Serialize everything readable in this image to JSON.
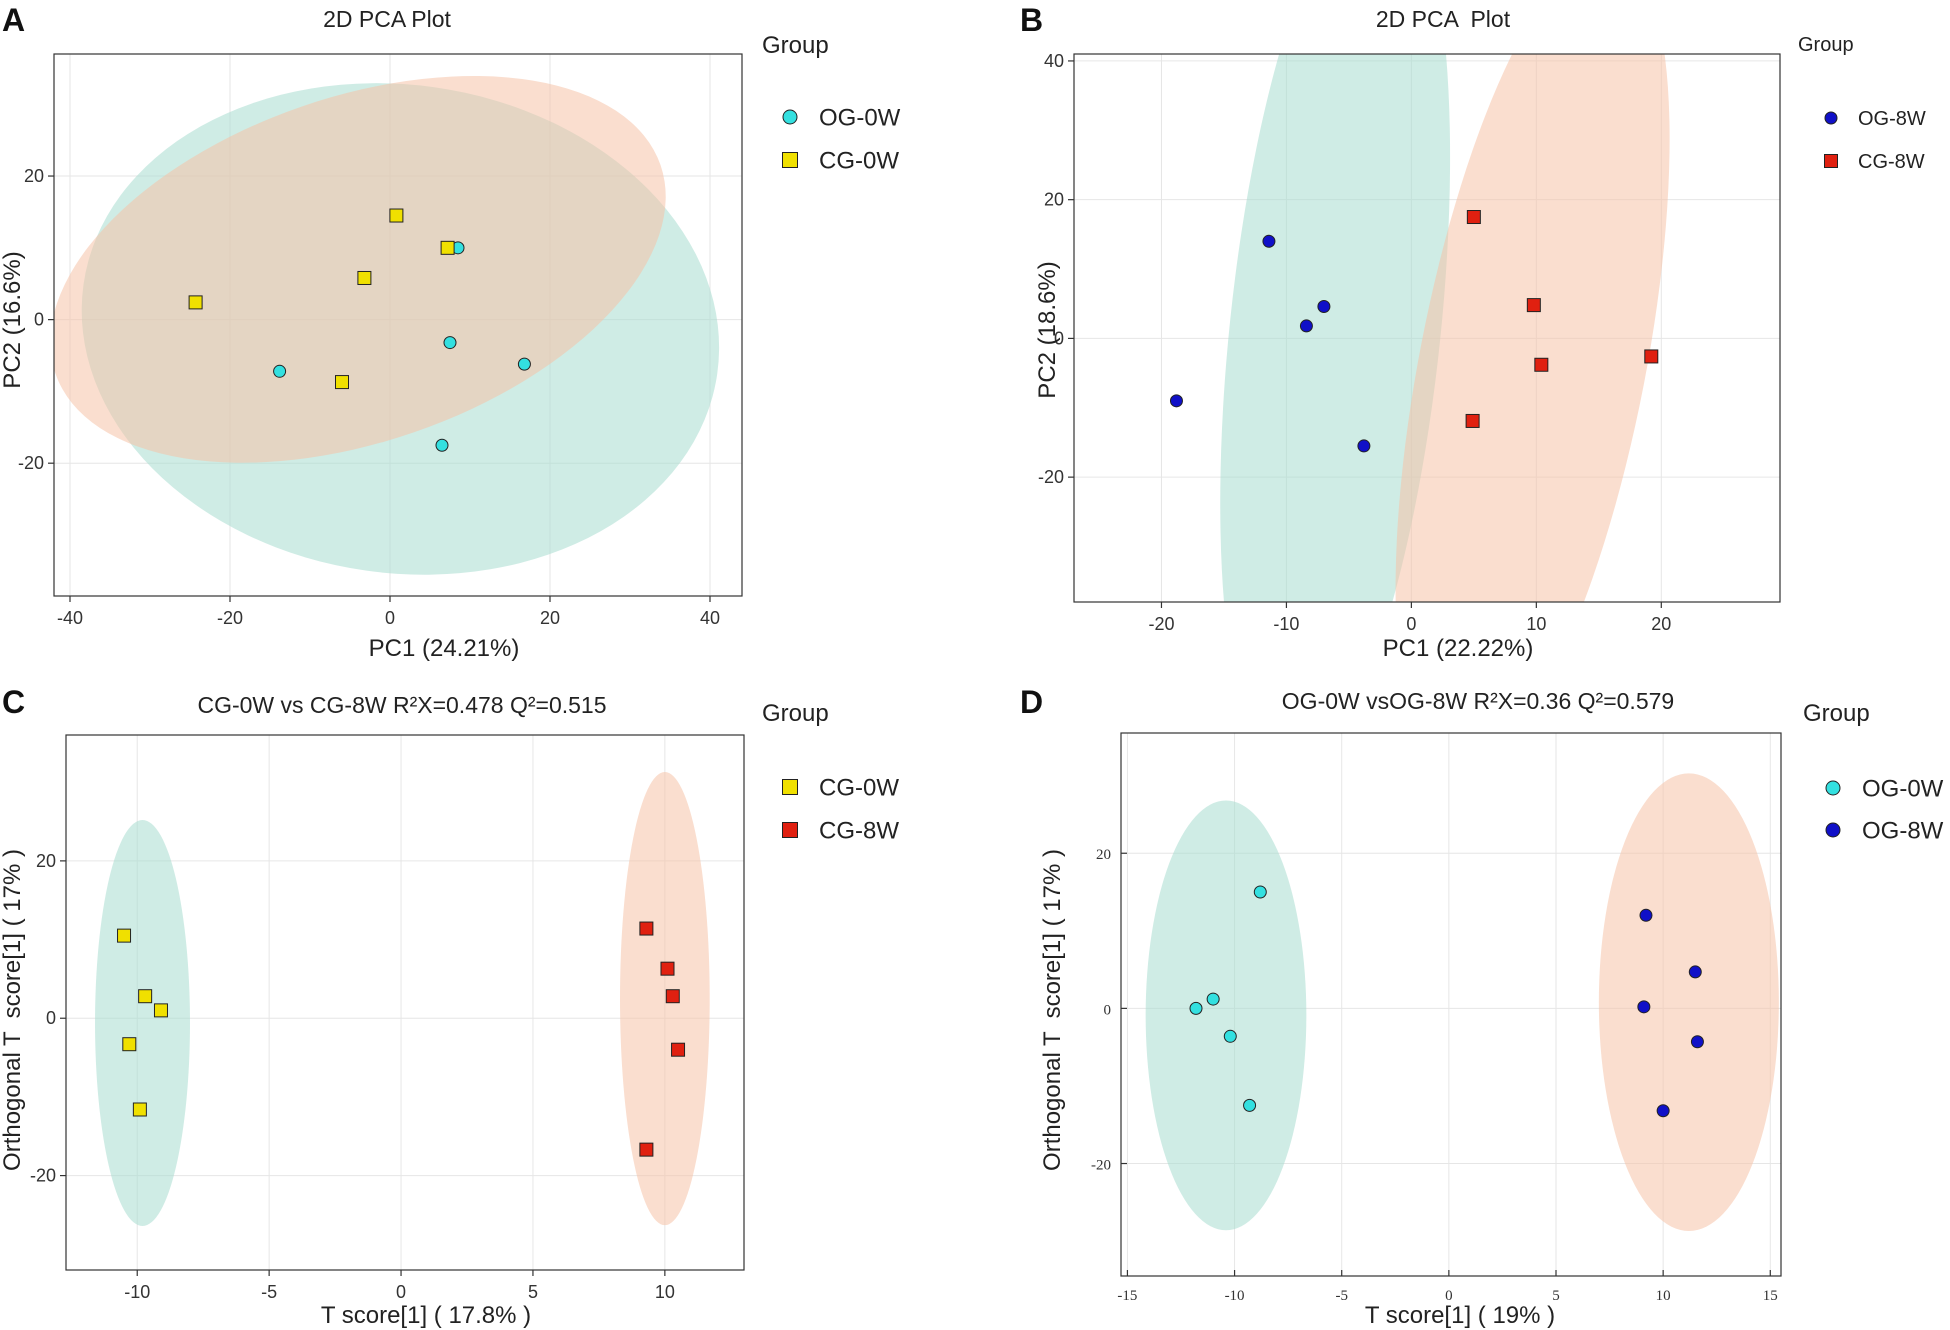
{
  "chart_data": [
    {
      "panel": "A",
      "type": "scatter",
      "title": "2D PCA Plot",
      "xlabel": "PC1 (24.21%)",
      "ylabel": "PC2 (16.6%)",
      "xlim": [
        -42,
        44
      ],
      "ylim": [
        -38.5,
        37
      ],
      "xticks": [
        -40,
        -20,
        0,
        20,
        40
      ],
      "yticks": [
        -20,
        0,
        20
      ],
      "grid": true,
      "legend": {
        "title": "Group",
        "position": "right"
      },
      "series": [
        {
          "name": "OG-0W",
          "marker": "circle",
          "color": "#33e0e0",
          "points": [
            [
              8.5,
              10
            ],
            [
              7.5,
              -3.2
            ],
            [
              16.8,
              -6.2
            ],
            [
              -13.8,
              -7.2
            ],
            [
              6.5,
              -17.5
            ]
          ]
        },
        {
          "name": "CG-0W",
          "marker": "square",
          "color": "#f0e000",
          "points": [
            [
              0.8,
              14.5
            ],
            [
              7.2,
              10
            ],
            [
              -3.2,
              5.8
            ],
            [
              -24.3,
              2.4
            ],
            [
              -6.0,
              -8.7
            ]
          ]
        }
      ],
      "ellipses": [
        {
          "group": "OG-0W",
          "color": "#a8dcd0",
          "center": [
            1.3,
            -1.3
          ],
          "semi_axes": [
            40,
            34
          ],
          "angle_deg": -8
        },
        {
          "group": "CG-0W",
          "color": "#f5c3a8",
          "center": [
            -4.0,
            7.0
          ],
          "semi_axes": [
            40,
            24
          ],
          "angle_deg": 19
        }
      ]
    },
    {
      "panel": "B",
      "type": "scatter",
      "title": "2D PCA  Plot",
      "xlabel": "PC1 (22.22%)",
      "ylabel": "PC2 (18.6%)",
      "xlim": [
        -27,
        29.5
      ],
      "ylim": [
        -38,
        41
      ],
      "xticks": [
        -20,
        -10,
        0,
        10,
        20
      ],
      "yticks": [
        -20,
        0,
        20,
        40
      ],
      "grid": true,
      "legend": {
        "title": "Group",
        "position": "right"
      },
      "series": [
        {
          "name": "OG-8W",
          "marker": "circle",
          "color": "#1010c8",
          "points": [
            [
              -11.4,
              14
            ],
            [
              -7.0,
              4.6
            ],
            [
              -8.4,
              1.8
            ],
            [
              -18.8,
              -9
            ],
            [
              -3.8,
              -15.5
            ]
          ]
        },
        {
          "name": "CG-8W",
          "marker": "square",
          "color": "#e02010",
          "points": [
            [
              5.0,
              17.5
            ],
            [
              9.8,
              4.8
            ],
            [
              10.4,
              -3.8
            ],
            [
              19.2,
              -2.6
            ],
            [
              4.9,
              -11.9
            ]
          ]
        }
      ],
      "ellipses": [
        {
          "group": "OG-8W",
          "color": "#a8dcd0",
          "center": [
            -6.1,
            1.2
          ],
          "semi_axes": [
            36,
            15.2
          ],
          "angle_deg": 84
        },
        {
          "group": "CG-8W",
          "color": "#f5c3a8",
          "center": [
            9.7,
            -3.7
          ],
          "semi_axes": [
            33.7,
            16.3
          ],
          "angle_deg": 79
        }
      ]
    },
    {
      "panel": "C",
      "type": "scatter",
      "title": "CG-0W vs CG-8W R²X=0.478 Q²=0.515",
      "xlabel": "T score[1] ( 17.8% )",
      "ylabel": "Orthogonal T  score[1] ( 17% )",
      "xlim": [
        -12.7,
        13
      ],
      "ylim": [
        -32,
        36
      ],
      "xticks": [
        -10,
        -5,
        0,
        5,
        10
      ],
      "yticks": [
        -20,
        0,
        20
      ],
      "grid": true,
      "legend": {
        "title": "Group",
        "position": "right"
      },
      "series": [
        {
          "name": "CG-0W",
          "marker": "square",
          "color": "#f0e000",
          "points": [
            [
              -10.5,
              10.5
            ],
            [
              -9.7,
              2.8
            ],
            [
              -9.1,
              1.0
            ],
            [
              -10.3,
              -3.3
            ],
            [
              -9.9,
              -11.6
            ]
          ]
        },
        {
          "name": "CG-8W",
          "marker": "square",
          "color": "#e02010",
          "points": [
            [
              9.3,
              11.4
            ],
            [
              10.1,
              6.3
            ],
            [
              10.3,
              2.8
            ],
            [
              10.5,
              -4.0
            ],
            [
              9.3,
              -16.7
            ]
          ]
        }
      ],
      "ellipses": [
        {
          "group": "CG-0W",
          "color": "#a8dcd0",
          "center": [
            -9.8,
            -0.6
          ],
          "semi_axes": [
            1.8,
            25.8
          ],
          "angle_deg": 0
        },
        {
          "group": "CG-8W",
          "color": "#f5c3a8",
          "center": [
            10.0,
            2.5
          ],
          "semi_axes": [
            1.7,
            28.8
          ],
          "angle_deg": 0
        }
      ]
    },
    {
      "panel": "D",
      "type": "scatter",
      "title": "OG-0W vsOG-8W R²X=0.36 Q²=0.579",
      "xlabel": "T score[1] ( 19% )",
      "ylabel": "Orthogonal T  score[1] ( 17% )",
      "xlim": [
        -15.3,
        15.5
      ],
      "ylim": [
        -34.5,
        35.5
      ],
      "xticks": [
        -15,
        -10,
        -5,
        0,
        5,
        10,
        15
      ],
      "yticks": [
        -20,
        0,
        20
      ],
      "grid": true,
      "legend": {
        "title": "Group",
        "position": "right"
      },
      "series": [
        {
          "name": "OG-0W",
          "marker": "circle",
          "color": "#33e0e0",
          "points": [
            [
              -8.8,
              15
            ],
            [
              -11.0,
              1.2
            ],
            [
              -11.8,
              0
            ],
            [
              -10.2,
              -3.6
            ],
            [
              -9.3,
              -12.5
            ]
          ]
        },
        {
          "name": "OG-8W",
          "marker": "circle",
          "color": "#1010c8",
          "points": [
            [
              9.2,
              12
            ],
            [
              11.5,
              4.7
            ],
            [
              9.1,
              0.2
            ],
            [
              11.6,
              -4.3
            ],
            [
              10.0,
              -13.2
            ]
          ]
        }
      ],
      "ellipses": [
        {
          "group": "OG-0W",
          "color": "#a8dcd0",
          "center": [
            -10.4,
            -0.9
          ],
          "semi_axes": [
            3.75,
            27.7
          ],
          "angle_deg": 0
        },
        {
          "group": "OG-8W",
          "color": "#f5c3a8",
          "center": [
            11.2,
            0.8
          ],
          "semi_axes": [
            4.2,
            29.5
          ],
          "angle_deg": 0
        }
      ]
    }
  ]
}
